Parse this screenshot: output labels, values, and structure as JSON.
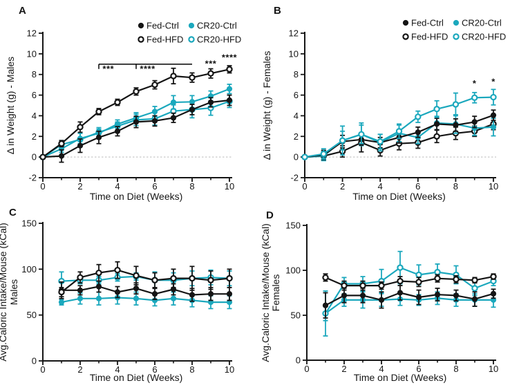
{
  "figure": {
    "background": "#ffffff",
    "panel_letters": [
      "A",
      "B",
      "C",
      "D"
    ]
  },
  "colors": {
    "black": "#151515",
    "teal": "#1BA8BD",
    "zero_line": "#c9c9c9",
    "white": "#ffffff"
  },
  "legend": {
    "position": "top-right",
    "items": [
      {
        "label": "Fed-Ctrl",
        "marker": "filled-circle",
        "color": "black"
      },
      {
        "label": "Fed-HFD",
        "marker": "open-circle",
        "color": "black"
      },
      {
        "label": "CR20-Ctrl",
        "marker": "filled-circle",
        "color": "teal"
      },
      {
        "label": "CR20-HFD",
        "marker": "open-circle",
        "color": "teal"
      }
    ]
  },
  "chart_data": [
    {
      "id": "A",
      "type": "line",
      "title": "",
      "xlabel": "Time on Diet (Weeks)",
      "ylabel": "Δ in Weight (g) - Males",
      "ylabel2": "",
      "x": [
        0,
        1,
        2,
        3,
        4,
        5,
        6,
        7,
        8,
        9,
        10
      ],
      "xlim": [
        0,
        10
      ],
      "ylim": [
        -2,
        12
      ],
      "xticks": [
        0,
        2,
        4,
        6,
        8,
        10
      ],
      "xticks_minor": [
        1,
        3,
        5,
        7,
        9
      ],
      "yticks": [
        -2,
        0,
        2,
        4,
        6,
        8,
        10,
        12
      ],
      "grid": false,
      "zero_line": true,
      "show_legend": true,
      "z_order": [
        "CR20-HFD",
        "CR20-Ctrl",
        "Fed-Ctrl",
        "Fed-HFD"
      ],
      "series": [
        {
          "name": "Fed-Ctrl",
          "color": "black",
          "marker": "filled-circle",
          "values": [
            0,
            0.1,
            1.1,
            1.9,
            2.5,
            3.4,
            3.5,
            3.8,
            4.6,
            5.3,
            5.5
          ],
          "errors": [
            0,
            0.6,
            0.65,
            0.6,
            0.45,
            0.55,
            0.5,
            0.45,
            0.5,
            0.45,
            0.5
          ]
        },
        {
          "name": "Fed-HFD",
          "color": "black",
          "marker": "open-circle",
          "values": [
            0,
            1.3,
            2.9,
            4.4,
            5.3,
            6.35,
            7.0,
            7.85,
            7.7,
            8.1,
            8.5
          ],
          "errors": [
            0,
            0.3,
            0.5,
            0.3,
            0.3,
            0.35,
            0.4,
            0.75,
            0.45,
            0.45,
            0.35
          ]
        },
        {
          "name": "CR20-Ctrl",
          "color": "teal",
          "marker": "filled-circle",
          "values": [
            0,
            0.8,
            1.8,
            2.3,
            3.2,
            3.8,
            4.4,
            5.3,
            5.35,
            5.9,
            6.6
          ],
          "errors": [
            0,
            0.35,
            0.5,
            0.4,
            0.4,
            0.5,
            0.5,
            0.65,
            0.6,
            0.5,
            0.45
          ]
        },
        {
          "name": "CR20-HFD",
          "color": "teal",
          "marker": "open-circle",
          "values": [
            0,
            1.2,
            1.7,
            2.4,
            3.0,
            3.6,
            3.7,
            4.45,
            4.6,
            4.75,
            5.4
          ],
          "errors": [
            0,
            0.4,
            0.6,
            0.45,
            0.4,
            0.55,
            0.6,
            0.6,
            0.8,
            0.7,
            0.6
          ]
        }
      ],
      "annotations": [
        {
          "kind": "bracket",
          "from_week": 3,
          "to_week": 8,
          "tick_weeks": [
            3,
            5
          ],
          "y_value": 9.0,
          "segment_labels": [
            {
              "text": "***",
              "week": 3.2
            },
            {
              "text": "****",
              "week": 5.2
            }
          ],
          "color": "black"
        },
        {
          "kind": "stars",
          "text": "***",
          "week": 9,
          "y_value": 8.75,
          "color": "black"
        },
        {
          "kind": "stars",
          "text": "****",
          "week": 10,
          "y_value": 9.35,
          "color": "black"
        }
      ]
    },
    {
      "id": "B",
      "type": "line",
      "title": "",
      "xlabel": "Time on Diet (Weeks)",
      "ylabel": "Δ in Weight (g) - Females",
      "ylabel2": "",
      "x": [
        0,
        1,
        2,
        3,
        4,
        5,
        6,
        7,
        8,
        9,
        10
      ],
      "xlim": [
        0,
        10
      ],
      "ylim": [
        -2,
        12
      ],
      "xticks": [
        0,
        2,
        4,
        6,
        8,
        10
      ],
      "xticks_minor": [
        1,
        3,
        5,
        7,
        9
      ],
      "yticks": [
        -2,
        0,
        2,
        4,
        6,
        8,
        10,
        12
      ],
      "grid": false,
      "zero_line": true,
      "show_legend": true,
      "z_order": [
        "Fed-HFD",
        "CR20-Ctrl",
        "Fed-Ctrl",
        "CR20-HFD"
      ],
      "series": [
        {
          "name": "Fed-Ctrl",
          "color": "black",
          "marker": "filled-circle",
          "values": [
            0,
            0.2,
            1.5,
            1.7,
            1.4,
            1.9,
            2.4,
            3.2,
            3.1,
            3.4,
            4.05
          ],
          "errors": [
            0,
            0.45,
            0.6,
            0.55,
            0.5,
            0.55,
            0.5,
            0.55,
            0.6,
            0.55,
            0.5
          ]
        },
        {
          "name": "Fed-HFD",
          "color": "black",
          "marker": "open-circle",
          "values": [
            0,
            0.1,
            0.55,
            1.4,
            0.65,
            1.3,
            1.4,
            2.0,
            2.3,
            2.5,
            3.2
          ],
          "errors": [
            0,
            0.4,
            0.55,
            0.9,
            0.55,
            0.6,
            0.55,
            0.6,
            0.6,
            0.5,
            0.55
          ]
        },
        {
          "name": "CR20-Ctrl",
          "color": "teal",
          "marker": "filled-circle",
          "values": [
            0,
            0.1,
            1.6,
            2.2,
            1.4,
            2.3,
            1.9,
            3.3,
            3.2,
            2.8,
            2.9
          ],
          "errors": [
            0,
            0.45,
            1.4,
            1.1,
            0.8,
            0.8,
            0.6,
            0.65,
            0.9,
            0.7,
            0.85
          ]
        },
        {
          "name": "CR20-HFD",
          "color": "teal",
          "marker": "open-circle",
          "values": [
            0,
            0.3,
            1.6,
            2.2,
            1.5,
            2.5,
            3.9,
            4.65,
            5.1,
            5.75,
            5.8
          ],
          "errors": [
            0,
            0.5,
            0.9,
            0.9,
            0.7,
            0.7,
            0.55,
            0.8,
            1.1,
            0.5,
            0.75
          ]
        }
      ],
      "annotations": [
        {
          "kind": "stars",
          "text": "*",
          "week": 9,
          "y_value": 6.85,
          "color": "teal"
        },
        {
          "kind": "stars",
          "text": "*",
          "week": 10,
          "y_value": 7.0,
          "color": "teal"
        }
      ]
    },
    {
      "id": "C",
      "type": "line",
      "title": "",
      "xlabel": "Time on Diet (Weeks)",
      "ylabel": "Avg.Caloric Intake/Mouse (kCal)",
      "ylabel2": "Males",
      "x": [
        1,
        2,
        3,
        4,
        5,
        6,
        7,
        8,
        9,
        10
      ],
      "xlim": [
        0,
        10
      ],
      "ylim": [
        0,
        150
      ],
      "xticks": [
        0,
        2,
        4,
        6,
        8,
        10
      ],
      "xticks_minor": [
        1,
        3,
        5,
        7,
        9
      ],
      "yticks": [
        0,
        50,
        100,
        150
      ],
      "grid": false,
      "zero_line": false,
      "show_legend": false,
      "z_order": [
        "CR20-Ctrl",
        "CR20-HFD",
        "Fed-Ctrl",
        "Fed-HFD"
      ],
      "series": [
        {
          "name": "Fed-Ctrl",
          "color": "black",
          "marker": "filled-circle",
          "values": [
            77,
            77,
            81,
            75,
            79,
            73,
            78,
            72,
            73,
            73
          ],
          "errors": [
            9,
            5,
            6,
            6,
            6,
            6,
            6,
            7,
            7,
            7
          ]
        },
        {
          "name": "Fed-HFD",
          "color": "black",
          "marker": "open-circle",
          "values": [
            75,
            91,
            96,
            99,
            93,
            88,
            90,
            90,
            88,
            90
          ],
          "errors": [
            5,
            6,
            9,
            9,
            10,
            8,
            10,
            13,
            10,
            10
          ]
        },
        {
          "name": "CR20-Ctrl",
          "color": "teal",
          "marker": "filled-circle",
          "values": [
            64,
            68,
            68,
            69,
            68,
            66,
            68,
            66,
            64,
            64
          ],
          "errors": [
            3,
            6,
            7,
            7,
            7,
            6,
            7,
            7,
            7,
            7
          ]
        },
        {
          "name": "CR20-HFD",
          "color": "teal",
          "marker": "open-circle",
          "values": [
            87,
            88,
            88,
            91,
            92,
            88,
            88,
            90,
            91,
            90
          ],
          "errors": [
            10,
            4,
            4,
            4,
            4,
            9,
            8,
            8,
            8,
            8
          ]
        }
      ],
      "annotations": []
    },
    {
      "id": "D",
      "type": "line",
      "title": "",
      "xlabel": "Time on Diet (Weeks)",
      "ylabel": "Avg.Caloric Intake/Mouse (kCal)",
      "ylabel2": "Females",
      "x": [
        1,
        2,
        3,
        4,
        5,
        6,
        7,
        8,
        9,
        10
      ],
      "xlim": [
        0,
        10
      ],
      "ylim": [
        0,
        150
      ],
      "xticks": [
        0,
        2,
        4,
        6,
        8,
        10
      ],
      "xticks_minor": [
        1,
        3,
        5,
        7,
        9
      ],
      "yticks": [
        0,
        50,
        100,
        150
      ],
      "grid": false,
      "zero_line": false,
      "show_legend": false,
      "z_order": [
        "CR20-Ctrl",
        "CR20-HFD",
        "Fed-Ctrl",
        "Fed-HFD"
      ],
      "series": [
        {
          "name": "Fed-Ctrl",
          "color": "black",
          "marker": "filled-circle",
          "values": [
            61,
            72,
            72,
            67,
            75,
            70,
            73,
            72,
            68,
            74
          ],
          "errors": [
            14,
            8,
            8,
            9,
            8,
            8,
            7,
            6,
            8,
            5
          ]
        },
        {
          "name": "Fed-HFD",
          "color": "black",
          "marker": "open-circle",
          "values": [
            92,
            83,
            83,
            83,
            88,
            87,
            91,
            90,
            89,
            93
          ],
          "errors": [
            4,
            5,
            5,
            4,
            5,
            5,
            4,
            4,
            3,
            3
          ]
        },
        {
          "name": "CR20-Ctrl",
          "color": "teal",
          "marker": "filled-circle",
          "values": [
            52,
            67,
            67,
            67,
            68,
            67,
            69,
            67,
            67,
            67
          ],
          "errors": [
            8,
            7,
            9,
            7,
            7,
            6,
            7,
            7,
            7,
            8
          ]
        },
        {
          "name": "CR20-HFD",
          "color": "teal",
          "marker": "open-circle",
          "values": [
            52,
            85,
            85,
            88,
            103,
            95,
            98,
            95,
            80,
            88
          ],
          "errors": [
            25,
            7,
            8,
            13,
            18,
            11,
            9,
            10,
            8,
            5
          ]
        }
      ],
      "annotations": []
    }
  ]
}
